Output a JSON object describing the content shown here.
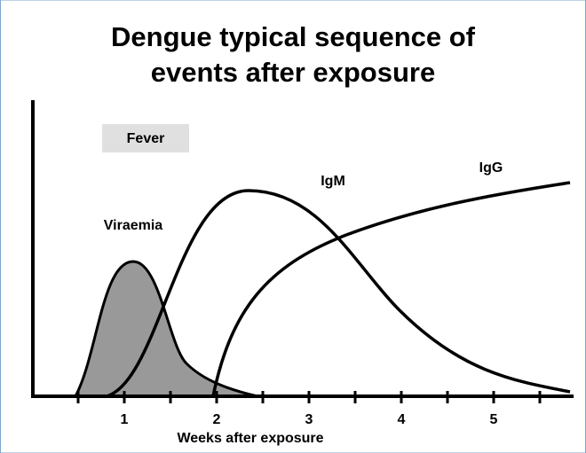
{
  "title": [
    "Dengue typical sequence of",
    "events after exposure"
  ],
  "labels": {
    "fever": "Fever",
    "viraemia": "Viraemia",
    "igm": "IgM",
    "igg": "IgG"
  },
  "x_axis": {
    "ticks": [
      "1",
      "2",
      "3",
      "4",
      "5"
    ],
    "label": "Weeks after exposure"
  }
}
